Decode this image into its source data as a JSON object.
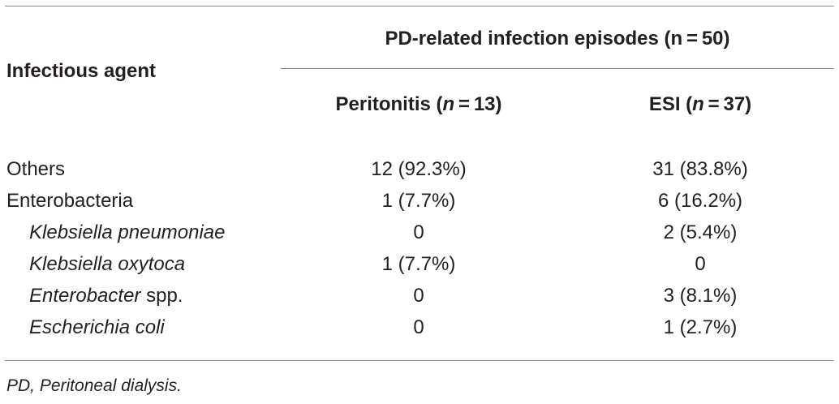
{
  "header": {
    "agent_label": "Infectious agent",
    "group_label": "PD-related infection episodes (n = 50)",
    "col1_name": "Peritonitis (",
    "col1_n": "n",
    "col1_value": " = 13)",
    "col2_name": "ESI (",
    "col2_n": "n",
    "col2_value": " = 37)"
  },
  "rows": [
    {
      "name": "Others",
      "name_suffix": "",
      "peritonitis": "12 (92.3%)",
      "esi": "31 (83.8%)"
    },
    {
      "name": "Enterobacteria",
      "name_suffix": "",
      "peritonitis": "1 (7.7%)",
      "esi": "6 (16.2%)"
    },
    {
      "name": "Klebsiella pneumoniae",
      "name_suffix": "",
      "peritonitis": "0",
      "esi": "2 (5.4%)"
    },
    {
      "name": "Klebsiella oxytoca",
      "name_suffix": "",
      "peritonitis": "1 (7.7%)",
      "esi": "0"
    },
    {
      "name": "Enterobacter",
      "name_suffix": " spp.",
      "peritonitis": "0",
      "esi": "3 (8.1%)"
    },
    {
      "name": "Escherichia coli",
      "name_suffix": "",
      "peritonitis": "0",
      "esi": "1 (2.7%)"
    }
  ],
  "footnote": "PD, Peritoneal dialysis."
}
